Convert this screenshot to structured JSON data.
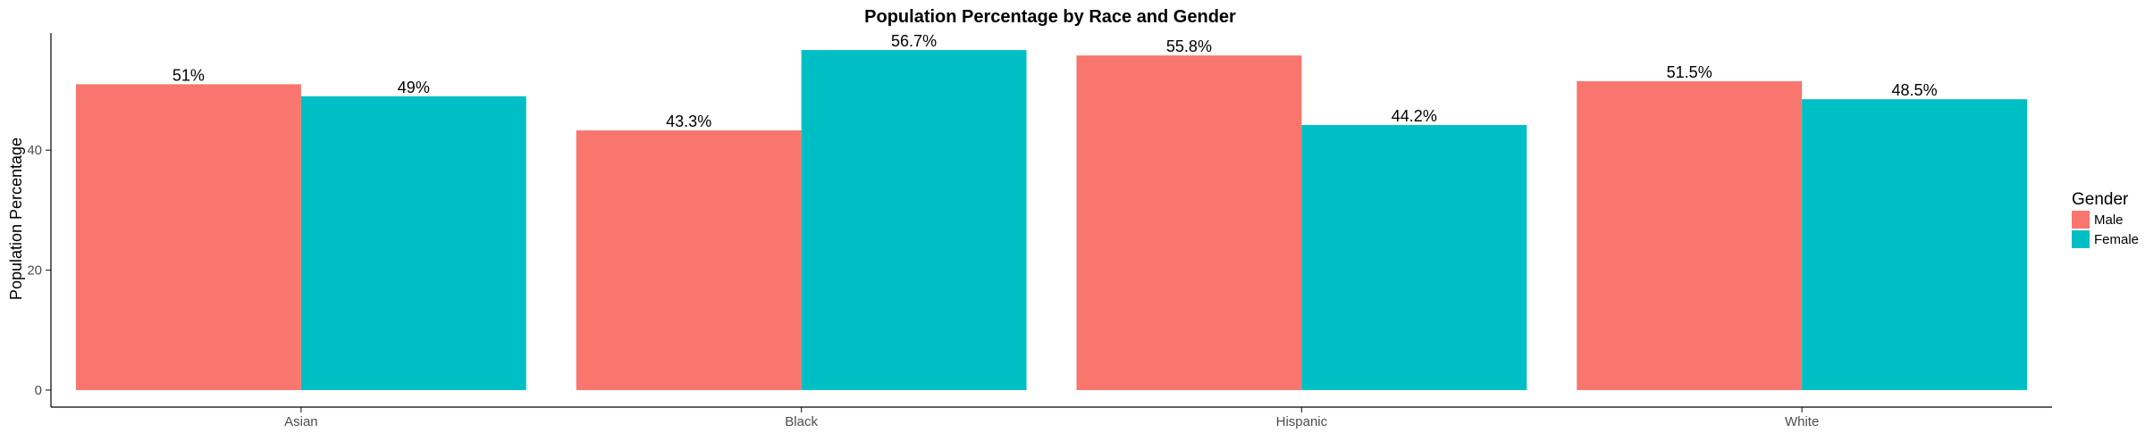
{
  "chart_data": {
    "type": "bar",
    "title": "Population Percentage by Race and Gender",
    "xlabel": "",
    "ylabel": "Population Percentage",
    "categories": [
      "Asian",
      "Black",
      "Hispanic",
      "White"
    ],
    "series": [
      {
        "name": "Male",
        "color": "#F8766D",
        "values": [
          51,
          43.3,
          55.8,
          51.5
        ],
        "labels": [
          "51%",
          "43.3%",
          "55.8%",
          "51.5%"
        ]
      },
      {
        "name": "Female",
        "color": "#00BFC4",
        "values": [
          49,
          56.7,
          44.2,
          48.5
        ],
        "labels": [
          "49%",
          "56.7%",
          "44.2%",
          "48.5%"
        ]
      }
    ],
    "yticks": [
      0,
      20,
      40
    ],
    "ylim": [
      -2.84,
      59.54
    ],
    "grid": false,
    "legend": {
      "title": "Gender",
      "position": "right"
    }
  }
}
